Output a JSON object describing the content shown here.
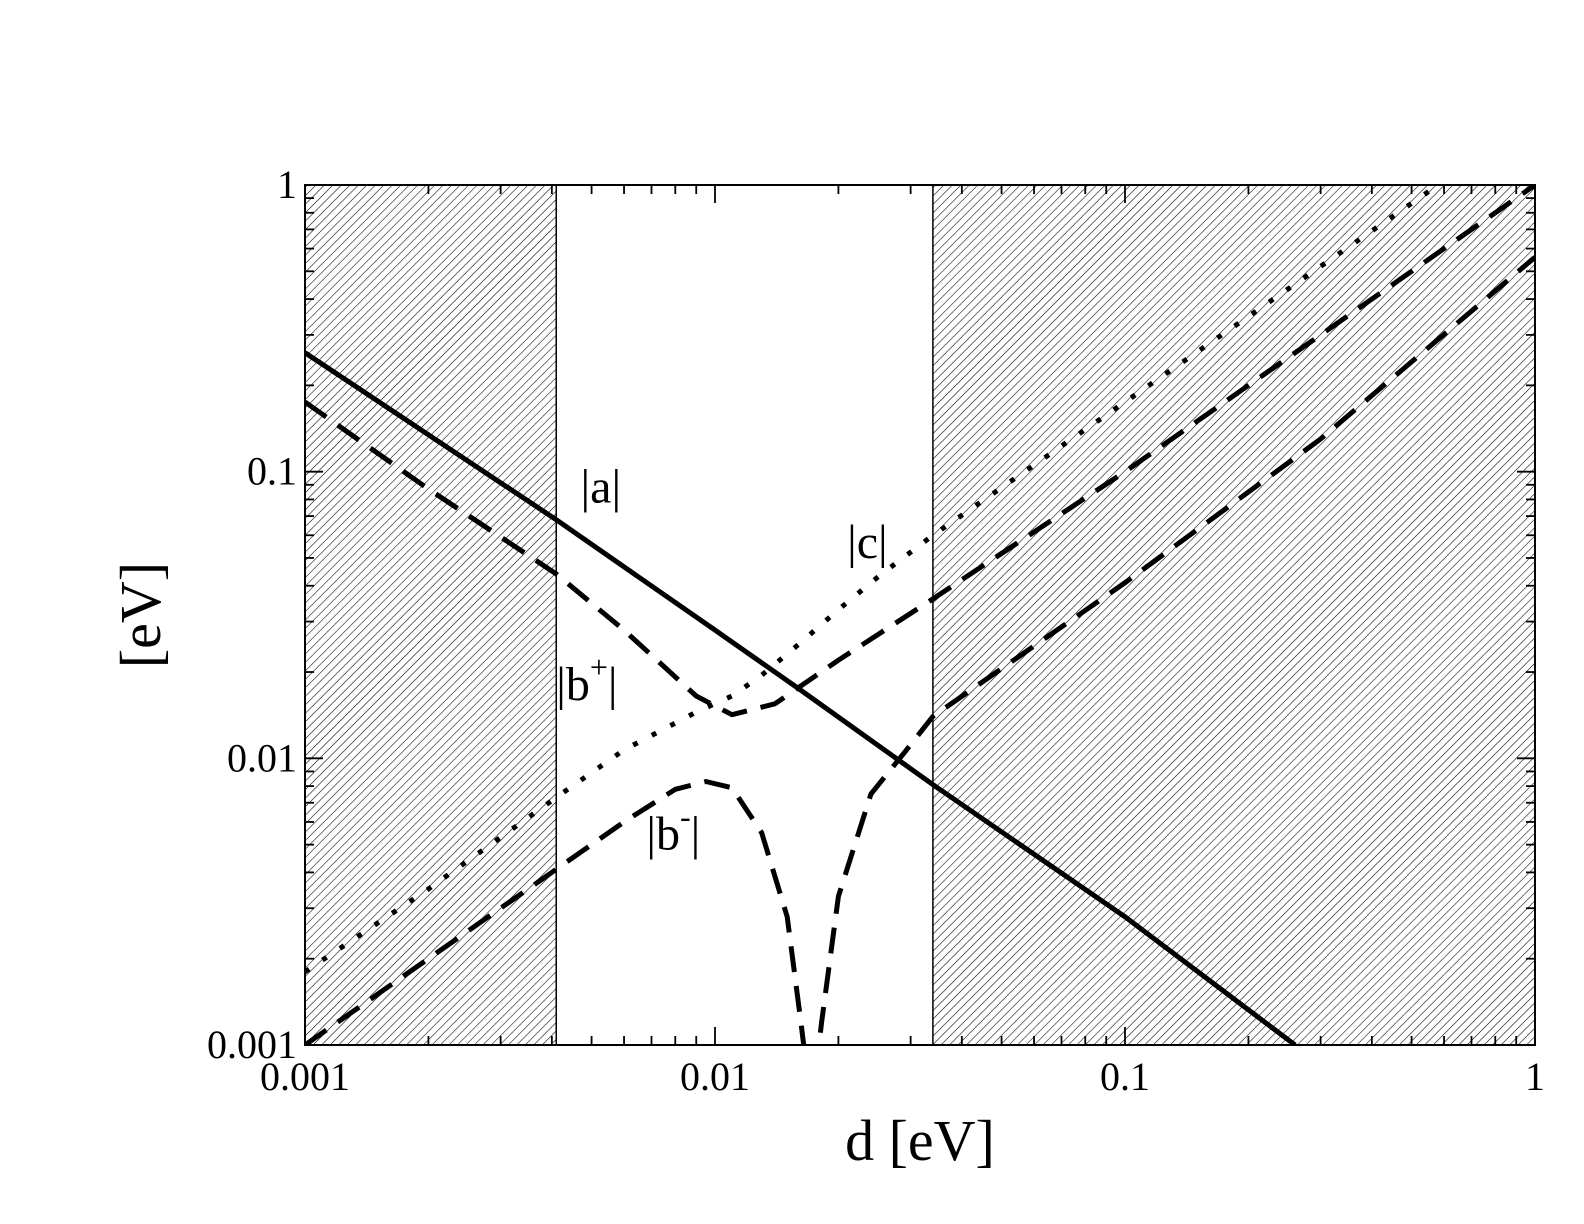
{
  "chart_data": {
    "type": "line",
    "title": "",
    "xlabel": "d [eV]",
    "ylabel": "[eV]",
    "xscale": "log",
    "yscale": "log",
    "xlim": [
      0.001,
      1
    ],
    "ylim": [
      0.001,
      1
    ],
    "xticks": [
      0.001,
      0.01,
      0.1,
      1
    ],
    "yticks": [
      0.001,
      0.01,
      0.1,
      1
    ],
    "xtick_labels": [
      "0.001",
      "0.01",
      "0.1",
      "1"
    ],
    "ytick_labels": [
      "0.001",
      "0.01",
      "0.1",
      "1"
    ],
    "grid": false,
    "legend": "none",
    "shaded_regions": [
      {
        "x": [
          0.001,
          0.0041
        ],
        "style": "hatched"
      },
      {
        "x": [
          0.034,
          1
        ],
        "style": "hatched"
      }
    ],
    "series": [
      {
        "name": "|a|",
        "style": "solid",
        "x": [
          0.001,
          0.0041,
          0.01,
          0.016,
          0.034,
          0.1,
          0.26
        ],
        "y": [
          0.26,
          0.068,
          0.028,
          0.0175,
          0.0081,
          0.0028,
          0.001
        ]
      },
      {
        "name": "|b+|",
        "style": "dashed",
        "x": [
          0.001,
          0.002,
          0.0041,
          0.006,
          0.009,
          0.011,
          0.014,
          0.02,
          0.034,
          0.1,
          0.3,
          1
        ],
        "y": [
          0.175,
          0.087,
          0.044,
          0.028,
          0.0165,
          0.0142,
          0.0155,
          0.022,
          0.036,
          0.1,
          0.3,
          1
        ]
      },
      {
        "name": "|b-|",
        "style": "dashed",
        "x": [
          0.001,
          0.002,
          0.0041,
          0.006,
          0.008,
          0.0095,
          0.011,
          0.013,
          0.015,
          0.0162,
          0.0172,
          0.0182,
          0.02,
          0.024,
          0.029,
          0.034,
          0.1,
          0.3,
          1
        ],
        "y": [
          0.001,
          0.002,
          0.0041,
          0.006,
          0.0078,
          0.0083,
          0.0079,
          0.0055,
          0.0028,
          0.0012,
          0.0006,
          0.0012,
          0.0033,
          0.0075,
          0.0105,
          0.014,
          0.041,
          0.13,
          0.56
        ]
      },
      {
        "name": "|c|",
        "style": "dotted",
        "x": [
          0.001,
          0.002,
          0.0041,
          0.006,
          0.009,
          0.011,
          0.013,
          0.016,
          0.02,
          0.025,
          0.034,
          0.1,
          0.3,
          0.58
        ],
        "y": [
          0.0018,
          0.0035,
          0.0073,
          0.0107,
          0.0145,
          0.0165,
          0.0195,
          0.025,
          0.033,
          0.043,
          0.06,
          0.175,
          0.52,
          1
        ]
      }
    ],
    "annotations": [
      {
        "text": "|a|",
        "x": 0.0047,
        "y": 0.078
      },
      {
        "text": "|c|",
        "x": 0.021,
        "y": 0.05
      },
      {
        "text": "|b",
        "sup": "+",
        "suffix": "|",
        "x": 0.0041,
        "y": 0.016
      },
      {
        "text": "|b",
        "sup": "-",
        "suffix": "|",
        "x": 0.0068,
        "y": 0.0048
      }
    ]
  },
  "colors": {
    "line": "#000000",
    "background": "#ffffff"
  }
}
